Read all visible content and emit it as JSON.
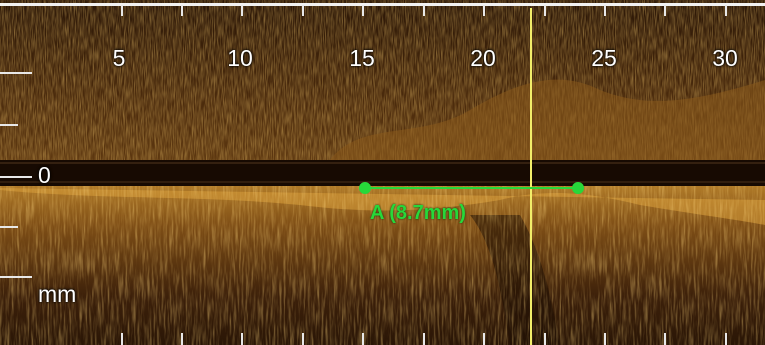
{
  "viewer": {
    "x_axis": {
      "ticks": [
        "5",
        "10",
        "15",
        "20",
        "25",
        "30"
      ]
    },
    "y_axis": {
      "zero_label": "0",
      "unit": "mm"
    },
    "measurement": {
      "label": "A (8.7mm)",
      "value_mm": 8.7,
      "color": "#27d83a"
    },
    "cursor_line_color": "#f2ee6a",
    "scan_colors": {
      "dark": "#2a1606",
      "mid": "#7a4a12",
      "bright": "#e0a030",
      "band": "#1a0c03"
    }
  }
}
